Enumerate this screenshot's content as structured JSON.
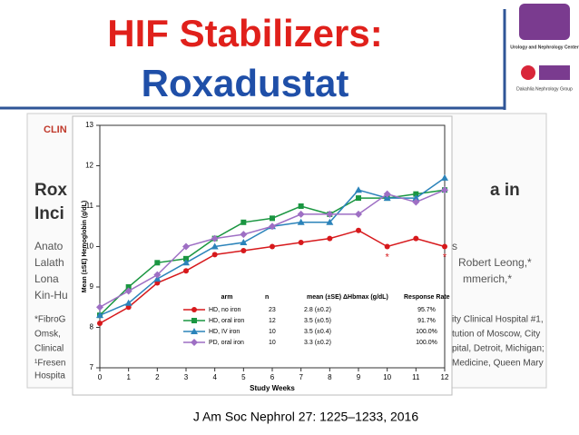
{
  "slide": {
    "title_line1": "HIF Stabilizers:",
    "title_line2": "Roxadustat",
    "citation": "J Am Soc Nephrol 27: 1225–1233, 2016",
    "logo_top": "Urology and Nephrology Center",
    "logo_bottom": "Dakahlia Nephrology Group"
  },
  "background_paper": {
    "left": [
      "CLIN",
      "Rox",
      "Inci",
      "Anato",
      "Lalath",
      "Lona",
      "Kin-Hu",
      "*FibroG",
      "Omsk,",
      "Clinical",
      "¹Fresen",
      "Hospita"
    ],
    "right": [
      "a in",
      "s",
      "Robert Leong,*",
      "mmerich,*",
      "ity Clinical Hospital #1,",
      "tution of Moscow, City",
      "pital, Detroit, Michigan;",
      "Medicine, Queen Mary"
    ]
  },
  "chart_data": {
    "type": "line",
    "xlabel": "Study Weeks",
    "ylabel": "Mean (±SE) Hemoglobin (g/dL)",
    "x": [
      0,
      1,
      2,
      3,
      4,
      5,
      6,
      7,
      8,
      9,
      10,
      11,
      12
    ],
    "xlim": [
      0,
      12
    ],
    "xticks": [
      0,
      1,
      2,
      3,
      4,
      5,
      6,
      7,
      8,
      9,
      10,
      11,
      12
    ],
    "ylim": [
      7,
      13
    ],
    "yticks": [
      7,
      8,
      9,
      10,
      11,
      12,
      13
    ],
    "series": [
      {
        "name": "HD, no iron",
        "color": "#d7191c",
        "marker": "circle",
        "values": [
          8.1,
          8.5,
          9.1,
          9.4,
          9.8,
          9.9,
          10.0,
          10.1,
          10.2,
          10.4,
          10.0,
          10.2,
          10.0
        ]
      },
      {
        "name": "HD, oral iron",
        "color": "#1a9641",
        "marker": "square",
        "values": [
          8.3,
          9.0,
          9.6,
          9.7,
          10.2,
          10.6,
          10.7,
          11.0,
          10.8,
          11.2,
          11.2,
          11.3,
          11.4
        ]
      },
      {
        "name": "HD, IV iron",
        "color": "#2b83ba",
        "marker": "triangle",
        "values": [
          8.3,
          8.6,
          9.2,
          9.6,
          10.0,
          10.1,
          10.5,
          10.6,
          10.6,
          11.4,
          11.2,
          11.2,
          11.7
        ]
      },
      {
        "name": "PD, oral iron",
        "color": "#9e6fc4",
        "marker": "diamond",
        "values": [
          8.5,
          8.9,
          9.3,
          10.0,
          10.2,
          10.3,
          10.5,
          10.8,
          10.8,
          10.8,
          11.3,
          11.1,
          11.4
        ]
      }
    ],
    "annotations": [
      {
        "text": "*",
        "x": 10
      },
      {
        "text": "*",
        "x": 12
      }
    ],
    "legend_table": {
      "headers": [
        "arm",
        "n",
        "mean (±SE) ΔHbmax (g/dL)",
        "Response Rate"
      ],
      "rows": [
        [
          "23",
          "2.8 (±0.2)",
          "95.7%"
        ],
        [
          "12",
          "3.5 (±0.5)",
          "91.7%"
        ],
        [
          "10",
          "3.5 (±0.4)",
          "100.0%"
        ],
        [
          "10",
          "3.3 (±0.2)",
          "100.0%"
        ]
      ]
    }
  }
}
